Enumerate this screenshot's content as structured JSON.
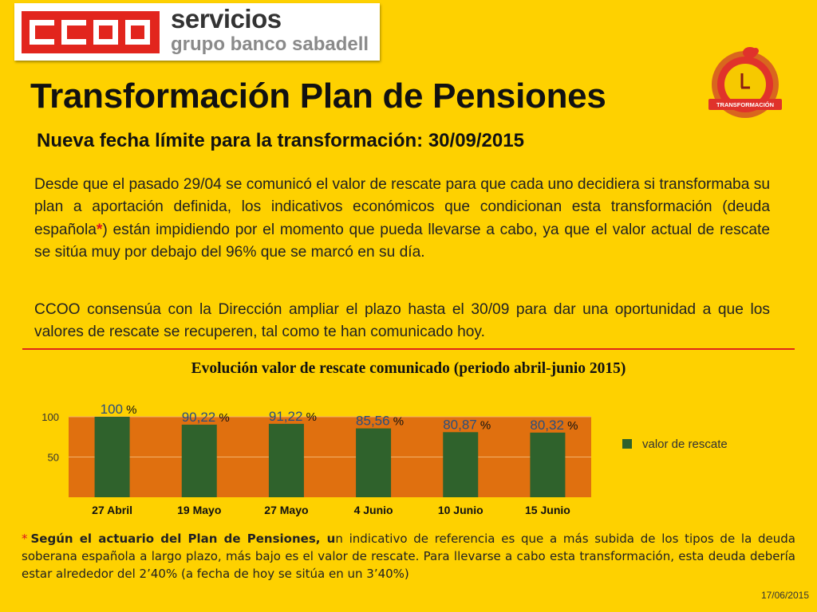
{
  "logo": {
    "brand": "CCOO",
    "line1": "servicios",
    "line2": "grupo banco sabadell"
  },
  "title": "Transformación Plan de Pensiones",
  "badge": {
    "label": "TRANSFORMACIÓN"
  },
  "subtitle": "Nueva fecha límite para la transformación: 30/09/2015",
  "paragraph1": {
    "before_star": "Desde que el pasado 29/04 se comunicó el valor de rescate para que cada uno decidiera si transformaba su plan a aportación definida, los indicativos económicos que condicionan esta transformación (deuda española",
    "star": "*",
    "after_star": ") están impidiendo por el momento que pueda llevarse a cabo, ya que el valor actual de rescate se sitúa muy por debajo del 96% que se marcó en su día."
  },
  "paragraph2": "CCOO consensúa con la Dirección ampliar el plazo hasta el 30/09 para dar una oportunidad a que los valores de rescate se recuperen, tal como te han comunicado hoy.",
  "chart_data": {
    "type": "bar",
    "title": "Evolución valor de rescate comunicado (periodo abril-junio 2015)",
    "categories": [
      "27 Abril",
      "19 Mayo",
      "27 Mayo",
      "4 Junio",
      "10 Junio",
      "15 Junio"
    ],
    "series": [
      {
        "name": "valor de rescate",
        "values": [
          100,
          90.22,
          91.22,
          85.56,
          80.87,
          80.32
        ],
        "labels": [
          "100",
          "90,22",
          "91,22",
          "85,56",
          "80,87",
          "80,32"
        ],
        "label_suffix": "%"
      }
    ],
    "yticks": [
      "100",
      "50"
    ],
    "ylim": [
      0,
      100
    ],
    "grid": true,
    "legend": "right",
    "colors": {
      "bar": "#2f622c",
      "plot_bg": "#e0700f",
      "gridline": "#f3b26c"
    }
  },
  "footnote": {
    "star": "*",
    "bold": "Según el actuario del Plan de Pensiones, u",
    "text": "n indicativo de referencia es que a más subida de los tipos de la deuda soberana española a largo plazo, más bajo es el valor de rescate. Para llevarse a cabo esta transformación, esta deuda debería estar alrededor del 2’40% (a fecha de hoy se sitúa en un 3’40%)"
  },
  "date": "17/06/2015",
  "colors": {
    "background": "#fed100",
    "accent_red": "#e0261a"
  }
}
